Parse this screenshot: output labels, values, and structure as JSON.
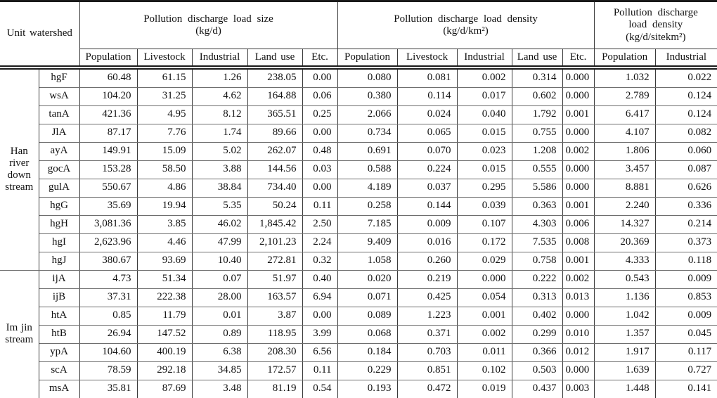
{
  "table": {
    "corner_label": "Unit watershed",
    "sections": [
      {
        "title": "Pollution discharge load size\n(kg/d)",
        "columns": [
          "Population",
          "Livestock",
          "Industrial",
          "Land use",
          "Etc."
        ]
      },
      {
        "title": "Pollution discharge load density\n(kg/d/km²)",
        "columns": [
          "Population",
          "Livestock",
          "Industrial",
          "Land use",
          "Etc."
        ]
      },
      {
        "title": "Pollution discharge\nload density\n(kg/d/sitekm²)",
        "columns": [
          "Population",
          "Industrial"
        ]
      }
    ],
    "groups": [
      {
        "label": "Han river down stream",
        "rows": [
          {
            "code": "hgF",
            "values": [
              "60.48",
              "61.15",
              "1.26",
              "238.05",
              "0.00",
              "0.080",
              "0.081",
              "0.002",
              "0.314",
              "0.000",
              "1.032",
              "0.022"
            ]
          },
          {
            "code": "wsA",
            "values": [
              "104.20",
              "31.25",
              "4.62",
              "164.88",
              "0.06",
              "0.380",
              "0.114",
              "0.017",
              "0.602",
              "0.000",
              "2.789",
              "0.124"
            ]
          },
          {
            "code": "tanA",
            "values": [
              "421.36",
              "4.95",
              "8.12",
              "365.51",
              "0.25",
              "2.066",
              "0.024",
              "0.040",
              "1.792",
              "0.001",
              "6.417",
              "0.124"
            ]
          },
          {
            "code": "JlA",
            "values": [
              "87.17",
              "7.76",
              "1.74",
              "89.66",
              "0.00",
              "0.734",
              "0.065",
              "0.015",
              "0.755",
              "0.000",
              "4.107",
              "0.082"
            ]
          },
          {
            "code": "ayA",
            "values": [
              "149.91",
              "15.09",
              "5.02",
              "262.07",
              "0.48",
              "0.691",
              "0.070",
              "0.023",
              "1.208",
              "0.002",
              "1.806",
              "0.060"
            ]
          },
          {
            "code": "gocA",
            "values": [
              "153.28",
              "58.50",
              "3.88",
              "144.56",
              "0.03",
              "0.588",
              "0.224",
              "0.015",
              "0.555",
              "0.000",
              "3.457",
              "0.087"
            ]
          },
          {
            "code": "gulA",
            "values": [
              "550.67",
              "4.86",
              "38.84",
              "734.40",
              "0.00",
              "4.189",
              "0.037",
              "0.295",
              "5.586",
              "0.000",
              "8.881",
              "0.626"
            ]
          },
          {
            "code": "hgG",
            "values": [
              "35.69",
              "19.94",
              "5.35",
              "50.24",
              "0.11",
              "0.258",
              "0.144",
              "0.039",
              "0.363",
              "0.001",
              "2.240",
              "0.336"
            ]
          },
          {
            "code": "hgH",
            "values": [
              "3,081.36",
              "3.85",
              "46.02",
              "1,845.42",
              "2.50",
              "7.185",
              "0.009",
              "0.107",
              "4.303",
              "0.006",
              "14.327",
              "0.214"
            ]
          },
          {
            "code": "hgI",
            "values": [
              "2,623.96",
              "4.46",
              "47.99",
              "2,101.23",
              "2.24",
              "9.409",
              "0.016",
              "0.172",
              "7.535",
              "0.008",
              "20.369",
              "0.373"
            ]
          },
          {
            "code": "hgJ",
            "values": [
              "380.67",
              "93.69",
              "10.40",
              "272.81",
              "0.32",
              "1.058",
              "0.260",
              "0.029",
              "0.758",
              "0.001",
              "4.333",
              "0.118"
            ]
          }
        ]
      },
      {
        "label": "Im jin stream",
        "rows": [
          {
            "code": "ijA",
            "values": [
              "4.73",
              "51.34",
              "0.07",
              "51.97",
              "0.40",
              "0.020",
              "0.219",
              "0.000",
              "0.222",
              "0.002",
              "0.543",
              "0.009"
            ]
          },
          {
            "code": "ijB",
            "values": [
              "37.31",
              "222.38",
              "28.00",
              "163.57",
              "6.94",
              "0.071",
              "0.425",
              "0.054",
              "0.313",
              "0.013",
              "1.136",
              "0.853"
            ]
          },
          {
            "code": "htA",
            "values": [
              "0.85",
              "11.79",
              "0.01",
              "3.87",
              "0.00",
              "0.089",
              "1.223",
              "0.001",
              "0.402",
              "0.000",
              "1.042",
              "0.009"
            ]
          },
          {
            "code": "htB",
            "values": [
              "26.94",
              "147.52",
              "0.89",
              "118.95",
              "3.99",
              "0.068",
              "0.371",
              "0.002",
              "0.299",
              "0.010",
              "1.357",
              "0.045"
            ]
          },
          {
            "code": "ypA",
            "values": [
              "104.60",
              "400.19",
              "6.38",
              "208.30",
              "6.56",
              "0.184",
              "0.703",
              "0.011",
              "0.366",
              "0.012",
              "1.917",
              "0.117"
            ]
          },
          {
            "code": "scA",
            "values": [
              "78.59",
              "292.18",
              "34.85",
              "172.57",
              "0.11",
              "0.229",
              "0.851",
              "0.102",
              "0.503",
              "0.000",
              "1.639",
              "0.727"
            ]
          },
          {
            "code": "msA",
            "values": [
              "35.81",
              "87.69",
              "3.48",
              "81.19",
              "0.54",
              "0.193",
              "0.472",
              "0.019",
              "0.437",
              "0.003",
              "1.448",
              "0.141"
            ]
          }
        ]
      }
    ]
  }
}
